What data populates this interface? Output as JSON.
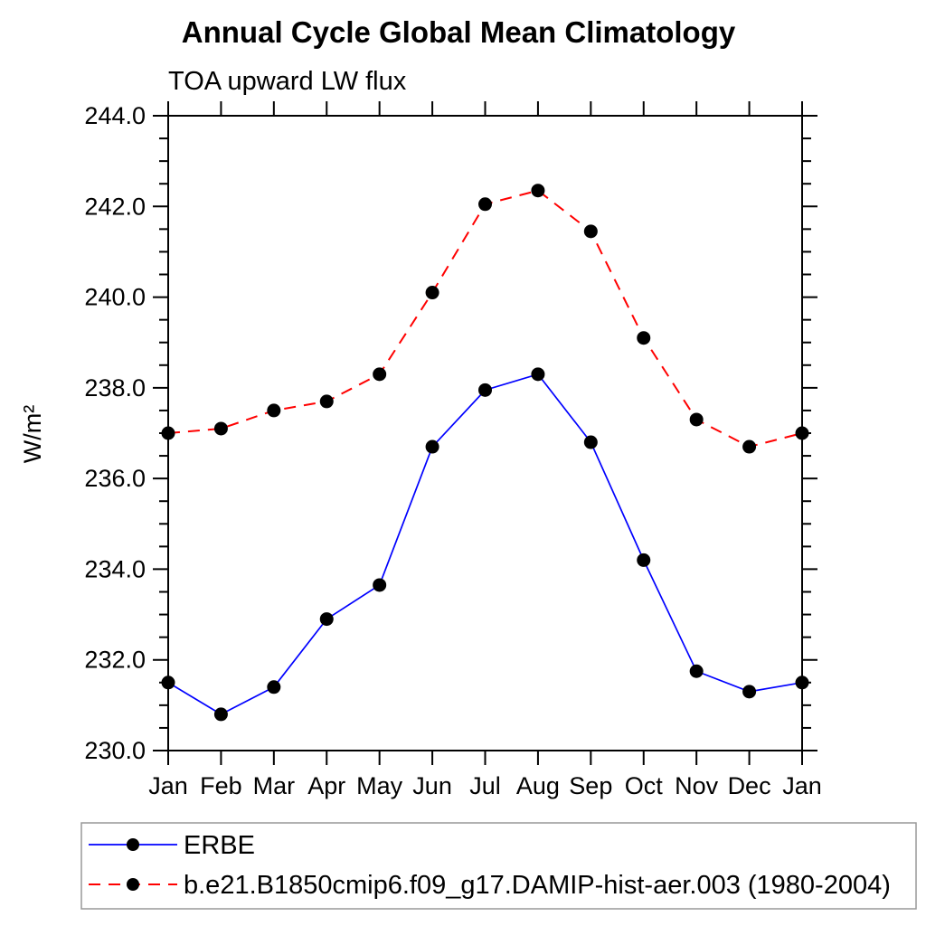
{
  "header": {
    "title": "Annual Cycle Global Mean Climatology",
    "subtitle": "TOA upward LW flux"
  },
  "axes": {
    "ylabel": "W/m²",
    "y_major_tick_step": 2.0,
    "y_minor_tick_step": 0.5,
    "y_tick_labels": [
      "230.0",
      "232.0",
      "234.0",
      "236.0",
      "238.0",
      "240.0",
      "242.0",
      "244.0"
    ]
  },
  "colors": {
    "erbe_line": "#0000ff",
    "model_line": "#ff0000",
    "marker": "#000000",
    "frame": "#000000",
    "legend_border": "#999999"
  },
  "chart_data": {
    "type": "line",
    "title": "Annual Cycle Global Mean Climatology",
    "subtitle": "TOA upward LW flux",
    "xlabel": "",
    "ylabel": "W/m²",
    "ylim": [
      230.0,
      244.0
    ],
    "ytick_major": 2.0,
    "ytick_minor": 0.5,
    "grid": false,
    "legend_position": "bottom-left",
    "categories": [
      "Jan",
      "Feb",
      "Mar",
      "Apr",
      "May",
      "Jun",
      "Jul",
      "Aug",
      "Sep",
      "Oct",
      "Nov",
      "Dec",
      "Jan"
    ],
    "series": [
      {
        "name": "ERBE",
        "color": "#0000ff",
        "line_style": "solid",
        "marker": "circle",
        "marker_color": "#000000",
        "values": [
          231.5,
          230.8,
          231.4,
          232.9,
          233.65,
          236.7,
          237.95,
          238.3,
          236.8,
          234.2,
          231.75,
          231.3,
          231.5
        ]
      },
      {
        "name": "b.e21.B1850cmip6.f09_g17.DAMIP-hist-aer.003 (1980-2004)",
        "color": "#ff0000",
        "line_style": "dashed",
        "marker": "circle",
        "marker_color": "#000000",
        "values": [
          237.0,
          237.1,
          237.5,
          237.7,
          238.3,
          240.1,
          242.05,
          242.35,
          241.45,
          239.1,
          237.3,
          236.7,
          237.0
        ]
      }
    ]
  }
}
